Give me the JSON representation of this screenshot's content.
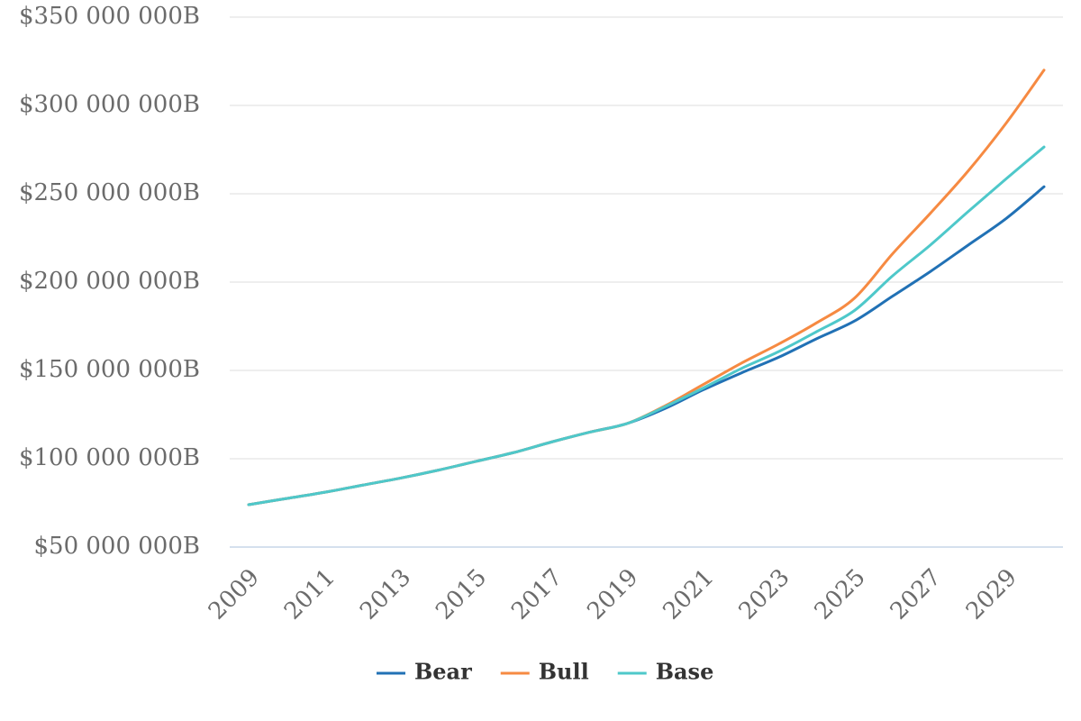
{
  "chart_data": {
    "type": "line",
    "x": [
      2009,
      2010,
      2011,
      2012,
      2013,
      2014,
      2015,
      2016,
      2017,
      2018,
      2019,
      2020,
      2021,
      2022,
      2023,
      2024,
      2025,
      2026,
      2027,
      2028,
      2029,
      2030
    ],
    "series": [
      {
        "name": "Bear",
        "color": "#2171b5",
        "values": [
          74000000,
          77500000,
          81000000,
          85000000,
          89000000,
          93500000,
          98500000,
          103500000,
          109500000,
          115000000,
          120000000,
          128500000,
          139000000,
          148500000,
          157500000,
          168000000,
          178000000,
          192000000,
          206000000,
          221000000,
          236000000,
          254000000
        ]
      },
      {
        "name": "Bull",
        "color": "#f68a42",
        "values": [
          74000000,
          77500000,
          81000000,
          85000000,
          89000000,
          93500000,
          98500000,
          103500000,
          109500000,
          115000000,
          120000000,
          130000000,
          142000000,
          154000000,
          165000000,
          177000000,
          191000000,
          216000000,
          239000000,
          263000000,
          290000000,
          320000000
        ]
      },
      {
        "name": "Base",
        "color": "#4ec8ca",
        "values": [
          74000000,
          77500000,
          81000000,
          85000000,
          89000000,
          93500000,
          98500000,
          103500000,
          109500000,
          115000000,
          120000000,
          129500000,
          140000000,
          151000000,
          160700000,
          172000000,
          184000000,
          203500000,
          221000000,
          240000000,
          258500000,
          276500000
        ]
      }
    ],
    "xlim": [
      2008.5,
      2030.5
    ],
    "xticks": [
      2009,
      2011,
      2013,
      2015,
      2017,
      2019,
      2021,
      2023,
      2025,
      2027,
      2029
    ],
    "ylim": [
      50000000,
      350000000
    ],
    "yticks": [
      {
        "value": 50000000,
        "label": "$50 000 000B"
      },
      {
        "value": 100000000,
        "label": "$100 000 000B"
      },
      {
        "value": 150000000,
        "label": "$150 000 000B"
      },
      {
        "value": 200000000,
        "label": "$200 000 000B"
      },
      {
        "value": 250000000,
        "label": "$250 000 000B"
      },
      {
        "value": 300000000,
        "label": "$300 000 000B"
      },
      {
        "value": 350000000,
        "label": "$350 000 000B"
      }
    ],
    "grid": true
  }
}
